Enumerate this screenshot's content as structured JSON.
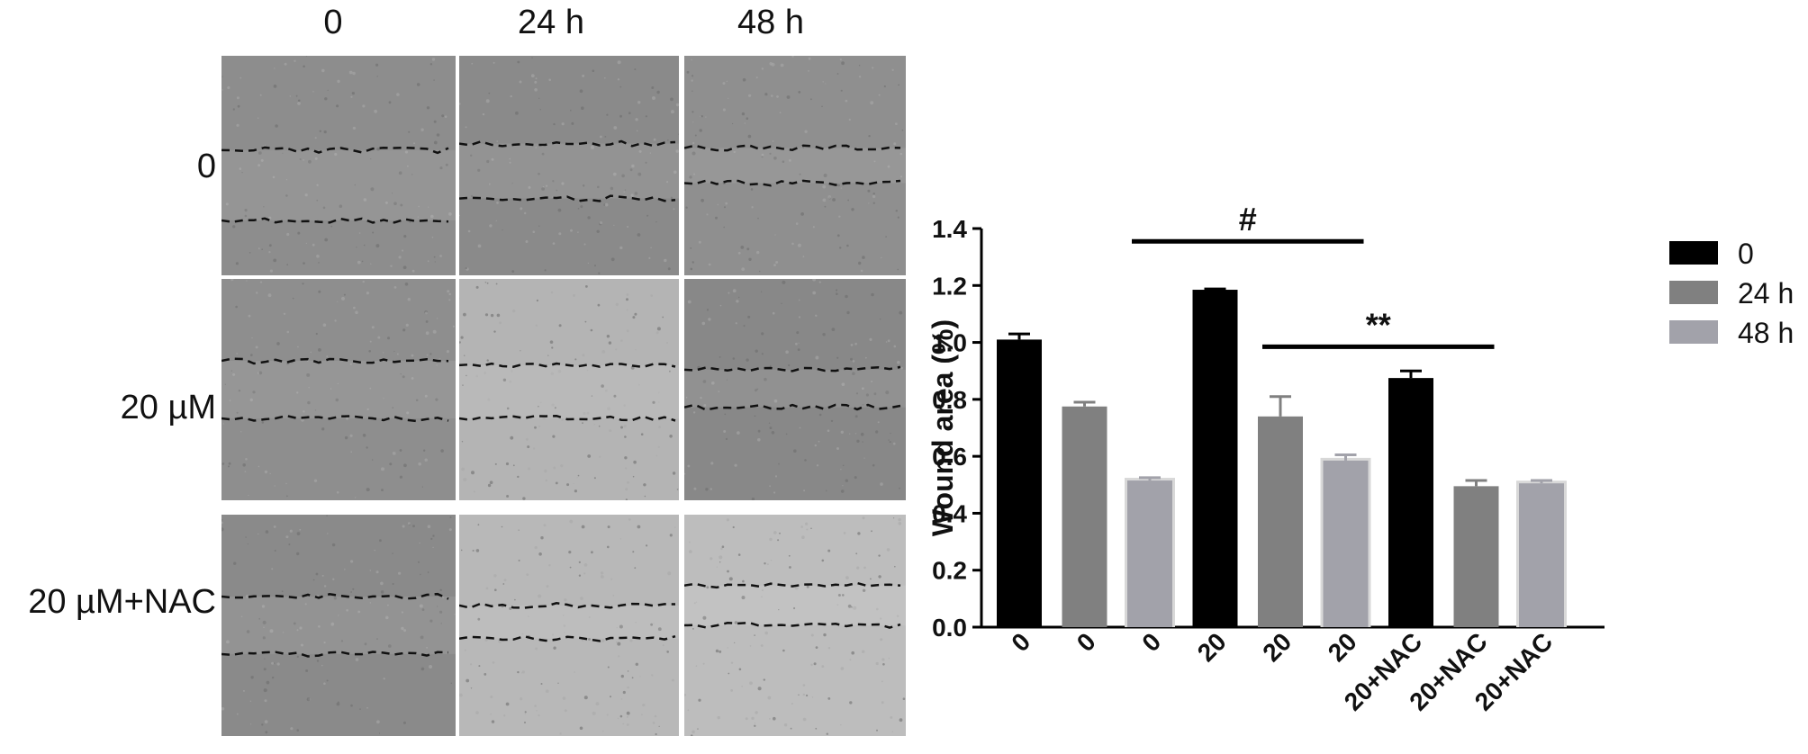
{
  "panel": {
    "columns": [
      "0",
      "24 h",
      "48 h"
    ],
    "rows": [
      "0",
      "20 µM",
      "20 µM+NAC"
    ]
  },
  "chart_data": {
    "type": "bar",
    "title": "",
    "xlabel": "",
    "ylabel": "Wound area (%)",
    "ylim": [
      0.0,
      1.4
    ],
    "yticks": [
      "0.0",
      "0.2",
      "0.4",
      "0.6",
      "0.8",
      "1.0",
      "1.2",
      "1.4"
    ],
    "grid": false,
    "legend_position": "top-right",
    "categories": [
      "0",
      "0",
      "0",
      "20",
      "20",
      "20",
      "20+NAC",
      "20+NAC",
      "20+NAC"
    ],
    "values": [
      1.01,
      0.775,
      0.515,
      1.185,
      0.74,
      0.585,
      0.875,
      0.495,
      0.505
    ],
    "errors": [
      0.02,
      0.015,
      0.01,
      0.003,
      0.07,
      0.02,
      0.025,
      0.02,
      0.01
    ],
    "bar_series": [
      "0",
      "24 h",
      "48 h",
      "0",
      "24 h",
      "48 h",
      "0",
      "24 h",
      "48 h"
    ],
    "series": [
      {
        "name": "0",
        "color": "#000000"
      },
      {
        "name": "24 h",
        "color": "#808080"
      },
      {
        "name": "48 h",
        "color": "#a2a2aa"
      }
    ],
    "annotations": [
      {
        "label": "#",
        "from_index": 2,
        "to_index": 5,
        "y": 1.355
      },
      {
        "label": "**",
        "from_index": 4,
        "to_index": 7,
        "y": 0.985
      }
    ]
  }
}
